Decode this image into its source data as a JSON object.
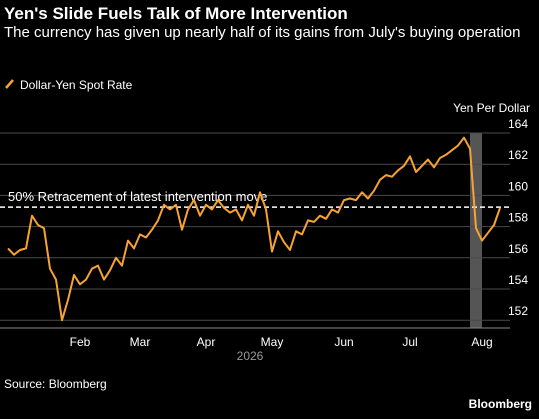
{
  "chart_data": {
    "type": "line",
    "title": "Yen's Slide Fuels Talk of More Intervention",
    "subtitle": "The currency has given up nearly half of its gains from July's buying operation",
    "y_axis_label": "Yen Per Dollar",
    "x_axis_label": "2026",
    "annotation": "50% Retracement of latest intervention move",
    "reference_line": 159.25,
    "source": "Source: Bloomberg",
    "brand": "Bloomberg",
    "categories": [
      null,
      null,
      null,
      null,
      null,
      null,
      null,
      null,
      null,
      null,
      null,
      null,
      "Feb",
      null,
      null,
      null,
      null,
      null,
      null,
      null,
      null,
      null,
      "Mar",
      null,
      null,
      null,
      null,
      null,
      null,
      null,
      null,
      null,
      null,
      "Apr",
      null,
      null,
      null,
      null,
      null,
      null,
      null,
      null,
      null,
      null,
      "May",
      null,
      null,
      null,
      null,
      null,
      null,
      null,
      null,
      null,
      null,
      null,
      "Jun",
      null,
      null,
      null,
      null,
      null,
      null,
      null,
      null,
      null,
      null,
      "Jul",
      null,
      null,
      null,
      null,
      null,
      null,
      null,
      null,
      null,
      null,
      null,
      "Aug",
      null,
      null,
      null
    ],
    "series": [
      {
        "name": "Dollar-Yen Spot Rate",
        "color": "#f7a331",
        "values": [
          156.6,
          156.2,
          156.5,
          156.6,
          158.7,
          158.1,
          157.9,
          155.3,
          154.6,
          152.0,
          153.3,
          154.9,
          154.3,
          154.6,
          155.3,
          155.5,
          154.6,
          155.2,
          156.0,
          155.5,
          157.1,
          156.6,
          157.5,
          157.3,
          157.8,
          158.4,
          159.4,
          159.1,
          159.4,
          157.8,
          159.1,
          159.7,
          158.7,
          159.4,
          159.1,
          159.7,
          159.2,
          158.9,
          159.1,
          158.4,
          159.4,
          158.7,
          160.2,
          159.1,
          156.4,
          157.7,
          157.0,
          156.5,
          157.7,
          157.5,
          158.4,
          158.3,
          158.7,
          158.5,
          159.1,
          158.9,
          159.7,
          159.8,
          159.7,
          160.2,
          159.8,
          160.3,
          161.0,
          161.3,
          161.2,
          161.6,
          161.9,
          162.5,
          161.5,
          161.9,
          162.3,
          161.8,
          162.4,
          162.6,
          162.9,
          163.2,
          163.7,
          163.0,
          157.9,
          157.1,
          157.6,
          158.1,
          159.2
        ]
      }
    ],
    "ylim": [
      151.5,
      164
    ],
    "yticks": [
      152,
      154,
      156,
      158,
      160,
      162,
      164
    ],
    "grid": true
  }
}
